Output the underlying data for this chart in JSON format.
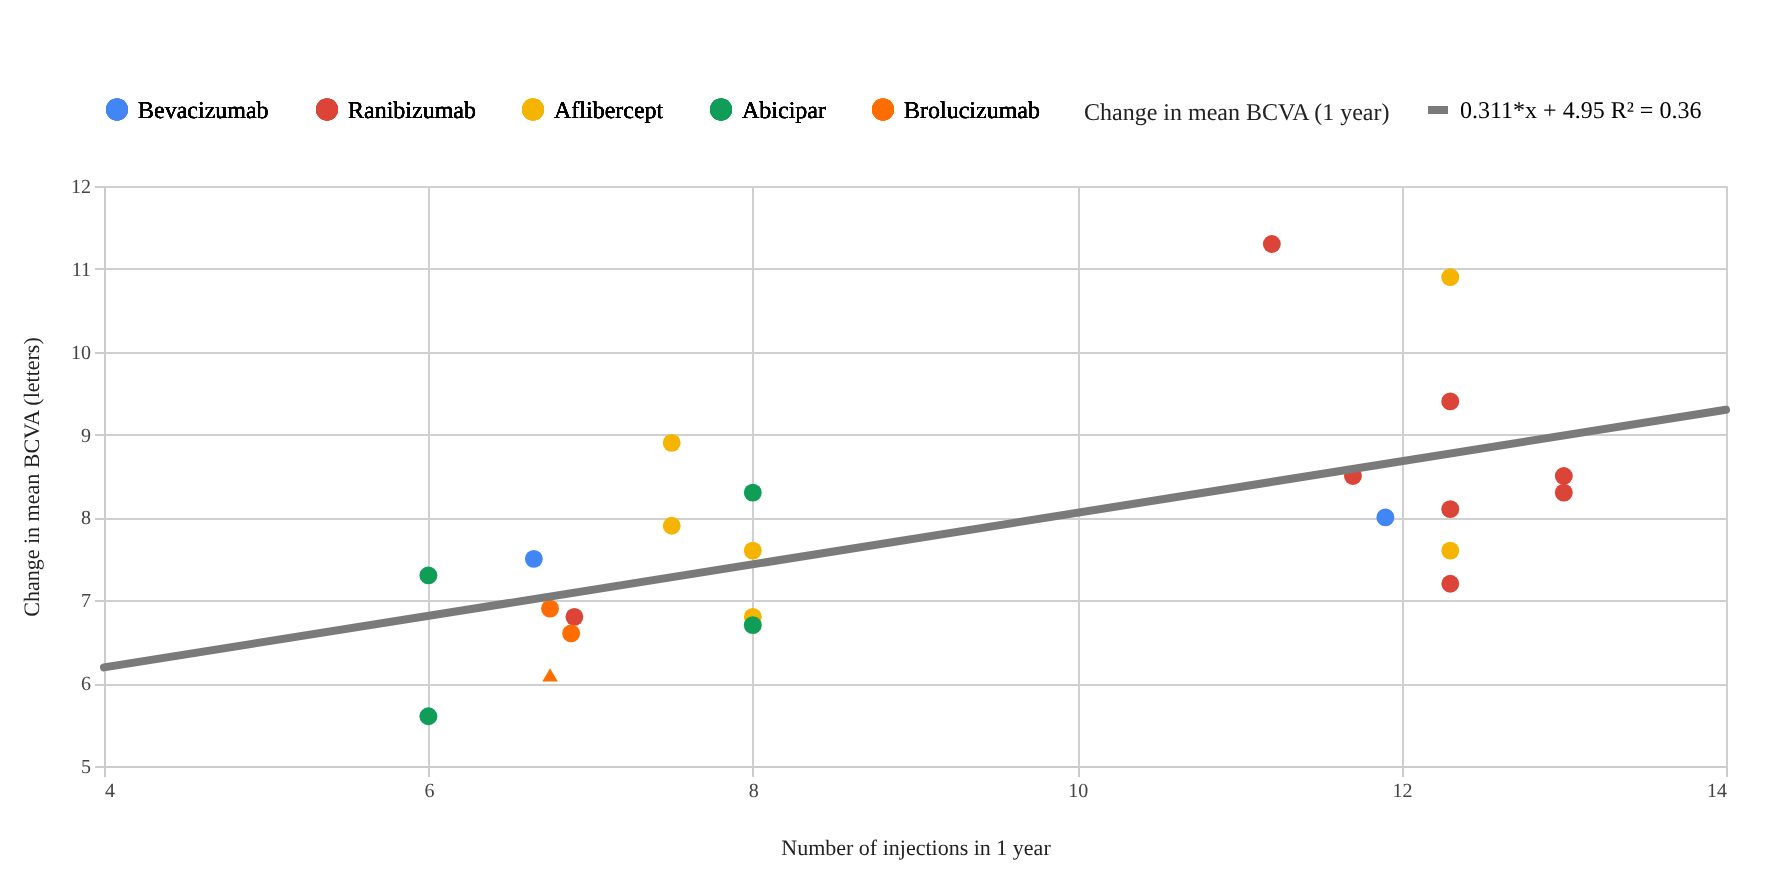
{
  "chart_data": {
    "type": "scatter",
    "xlabel": "Number of injections in 1 year",
    "ylabel": "Change in mean BCVA (letters)",
    "xlim": [
      4,
      14
    ],
    "ylim": [
      5,
      12
    ],
    "xticks": [
      4,
      6,
      8,
      10,
      12,
      14
    ],
    "yticks": [
      5,
      6,
      7,
      8,
      9,
      10,
      11,
      12
    ],
    "grid": true,
    "legend": "top",
    "marker": "circle",
    "annotations": [
      "Change in mean BCVA (1 year)"
    ],
    "series": [
      {
        "name": "Bevacizumab",
        "color": "#4285f4",
        "x": [
          6.65,
          11.9
        ],
        "values": [
          7.5,
          8.0
        ]
      },
      {
        "name": "Ranibizumab",
        "color": "#db4437",
        "x": [
          6.9,
          11.2,
          11.7,
          12.3,
          12.3,
          12.3,
          13.0,
          13.0
        ],
        "values": [
          6.8,
          11.3,
          8.5,
          9.4,
          8.1,
          7.2,
          8.5,
          8.3
        ]
      },
      {
        "name": "Aflibercept",
        "color": "#f4b400",
        "x": [
          7.5,
          7.5,
          8,
          8,
          12.3,
          12.3
        ],
        "values": [
          8.9,
          7.9,
          7.6,
          6.8,
          10.9,
          7.6
        ]
      },
      {
        "name": "Abicipar",
        "color": "#0f9d58",
        "x": [
          6,
          6,
          8,
          8
        ],
        "values": [
          7.3,
          5.6,
          8.3,
          6.7
        ]
      },
      {
        "name": "Brolucizumab",
        "color": "#ff6d01",
        "x": [
          6.75,
          6.88
        ],
        "values": [
          6.9,
          6.6
        ]
      },
      {
        "color": "#ff6d01",
        "marker": "triangle",
        "x": [
          6.75
        ],
        "values": [
          6.1
        ]
      },
      {
        "name": "0.311*x + 4.95 R² = 0.36",
        "type": "line",
        "marker": "none",
        "color": "#7a7a7a",
        "x": [
          4,
          14
        ],
        "values": [
          6.19,
          9.3
        ]
      }
    ]
  }
}
